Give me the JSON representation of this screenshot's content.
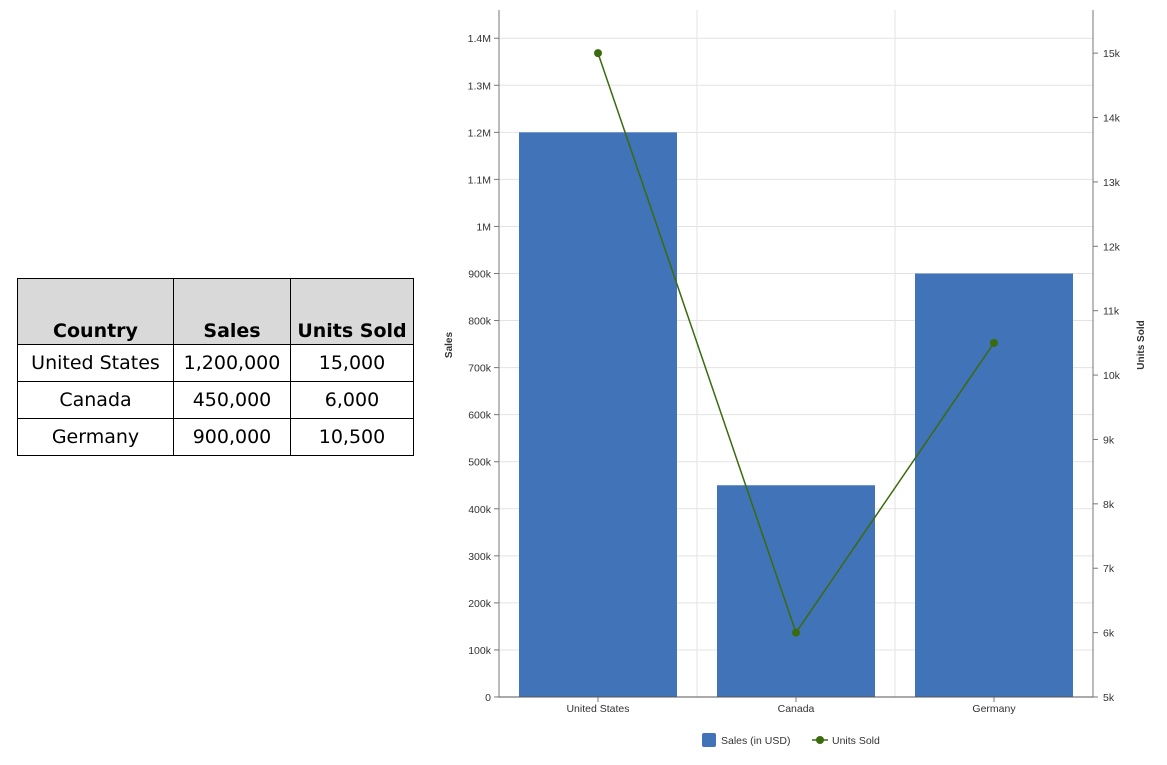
{
  "table": {
    "headers": [
      "Country",
      "Sales",
      "Units Sold"
    ],
    "rows": [
      [
        "United States",
        "1,200,000",
        "15,000"
      ],
      [
        "Canada",
        "450,000",
        "6,000"
      ],
      [
        "Germany",
        "900,000",
        "10,500"
      ]
    ]
  },
  "chart_data": {
    "type": "bar+line",
    "categories": [
      "United States",
      "Canada",
      "Germany"
    ],
    "series": [
      {
        "name": "Sales (in USD)",
        "type": "bar",
        "axis": "left",
        "values": [
          1200000,
          450000,
          900000
        ],
        "color": "#4173b9"
      },
      {
        "name": "Units Sold",
        "type": "line",
        "axis": "right",
        "values": [
          15000,
          6000,
          10500
        ],
        "color": "#3a6b0c"
      }
    ],
    "ylabel": "Sales",
    "y2label": "Units Sold",
    "ylim": [
      0,
      1460000
    ],
    "y2lim": [
      5000,
      15670
    ],
    "yticks": [
      0,
      100000,
      200000,
      300000,
      400000,
      500000,
      600000,
      700000,
      800000,
      900000,
      1000000,
      1100000,
      1200000,
      1300000,
      1400000
    ],
    "ytick_labels": [
      "0",
      "100k",
      "200k",
      "300k",
      "400k",
      "500k",
      "600k",
      "700k",
      "800k",
      "900k",
      "1M",
      "1.1M",
      "1.2M",
      "1.3M",
      "1.4M"
    ],
    "y2ticks": [
      5000,
      6000,
      7000,
      8000,
      9000,
      10000,
      11000,
      12000,
      13000,
      14000,
      15000
    ],
    "y2tick_labels": [
      "5k",
      "6k",
      "7k",
      "8k",
      "9k",
      "10k",
      "11k",
      "12k",
      "13k",
      "14k",
      "15k"
    ],
    "grid": true,
    "legend": "bottom"
  }
}
